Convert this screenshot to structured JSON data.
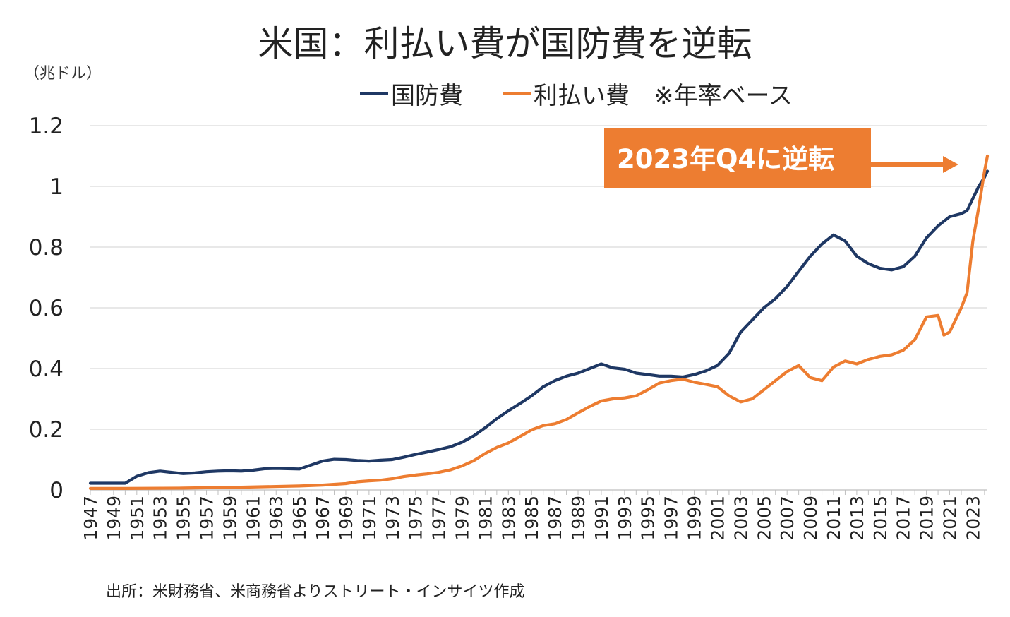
{
  "title": "米国：利払い費が国防費を逆転",
  "unit_label": "（兆ドル）",
  "legend_note": "※年率ベース",
  "source": "出所：米財務省、米商務省よりストリート・インサイツ作成",
  "annotation": {
    "text": "2023年Q4に逆転",
    "color": "#ed7d31"
  },
  "chart_data": {
    "type": "line",
    "x_range": [
      1947,
      2024.25
    ],
    "ylim": [
      0,
      1.2
    ],
    "yticks": [
      0,
      0.2,
      0.4,
      0.6,
      0.8,
      1,
      1.2
    ],
    "ytick_labels": [
      "0",
      "0.2",
      "0.4",
      "0.6",
      "0.8",
      "1",
      "1.2"
    ],
    "xtick_labels": [
      "1947",
      "1949",
      "1951",
      "1953",
      "1955",
      "1957",
      "1959",
      "1961",
      "1963",
      "1965",
      "1967",
      "1969",
      "1971",
      "1973",
      "1975",
      "1977",
      "1979",
      "1981",
      "1983",
      "1985",
      "1987",
      "1989",
      "1991",
      "1993",
      "1995",
      "1997",
      "1999",
      "2001",
      "2003",
      "2005",
      "2007",
      "2009",
      "2011",
      "2013",
      "2015",
      "2017",
      "2019",
      "2021",
      "2023"
    ],
    "grid": "horizontal",
    "series": [
      {
        "name": "国防費",
        "color": "#1f3864",
        "points": [
          [
            1947,
            0.022
          ],
          [
            1949,
            0.022
          ],
          [
            1950,
            0.022
          ],
          [
            1951,
            0.045
          ],
          [
            1952,
            0.057
          ],
          [
            1953,
            0.062
          ],
          [
            1954,
            0.058
          ],
          [
            1955,
            0.054
          ],
          [
            1956,
            0.056
          ],
          [
            1957,
            0.06
          ],
          [
            1958,
            0.062
          ],
          [
            1959,
            0.063
          ],
          [
            1960,
            0.062
          ],
          [
            1961,
            0.065
          ],
          [
            1962,
            0.07
          ],
          [
            1963,
            0.071
          ],
          [
            1964,
            0.07
          ],
          [
            1965,
            0.069
          ],
          [
            1966,
            0.082
          ],
          [
            1967,
            0.095
          ],
          [
            1968,
            0.101
          ],
          [
            1969,
            0.1
          ],
          [
            1970,
            0.097
          ],
          [
            1971,
            0.095
          ],
          [
            1972,
            0.098
          ],
          [
            1973,
            0.1
          ],
          [
            1974,
            0.108
          ],
          [
            1975,
            0.117
          ],
          [
            1976,
            0.125
          ],
          [
            1977,
            0.133
          ],
          [
            1978,
            0.142
          ],
          [
            1979,
            0.157
          ],
          [
            1980,
            0.178
          ],
          [
            1981,
            0.205
          ],
          [
            1982,
            0.235
          ],
          [
            1983,
            0.261
          ],
          [
            1984,
            0.285
          ],
          [
            1985,
            0.31
          ],
          [
            1986,
            0.34
          ],
          [
            1987,
            0.36
          ],
          [
            1988,
            0.375
          ],
          [
            1989,
            0.385
          ],
          [
            1990,
            0.4
          ],
          [
            1991,
            0.415
          ],
          [
            1992,
            0.402
          ],
          [
            1993,
            0.398
          ],
          [
            1994,
            0.385
          ],
          [
            1995,
            0.38
          ],
          [
            1996,
            0.375
          ],
          [
            1997,
            0.375
          ],
          [
            1998,
            0.372
          ],
          [
            1999,
            0.38
          ],
          [
            2000,
            0.392
          ],
          [
            2001,
            0.41
          ],
          [
            2002,
            0.45
          ],
          [
            2003,
            0.52
          ],
          [
            2004,
            0.56
          ],
          [
            2005,
            0.6
          ],
          [
            2006,
            0.63
          ],
          [
            2007,
            0.67
          ],
          [
            2008,
            0.72
          ],
          [
            2009,
            0.77
          ],
          [
            2010,
            0.81
          ],
          [
            2011,
            0.84
          ],
          [
            2012,
            0.82
          ],
          [
            2013,
            0.77
          ],
          [
            2014,
            0.745
          ],
          [
            2015,
            0.73
          ],
          [
            2016,
            0.725
          ],
          [
            2017,
            0.735
          ],
          [
            2018,
            0.77
          ],
          [
            2019,
            0.83
          ],
          [
            2020,
            0.87
          ],
          [
            2021,
            0.9
          ],
          [
            2022,
            0.91
          ],
          [
            2022.5,
            0.92
          ],
          [
            2023,
            0.96
          ],
          [
            2023.5,
            1.0
          ],
          [
            2024,
            1.03
          ],
          [
            2024.25,
            1.05
          ]
        ]
      },
      {
        "name": "利払い費",
        "color": "#ed7d31",
        "points": [
          [
            1947,
            0.005
          ],
          [
            1950,
            0.005
          ],
          [
            1955,
            0.006
          ],
          [
            1960,
            0.009
          ],
          [
            1965,
            0.013
          ],
          [
            1967,
            0.016
          ],
          [
            1969,
            0.021
          ],
          [
            1970,
            0.027
          ],
          [
            1971,
            0.03
          ],
          [
            1972,
            0.032
          ],
          [
            1973,
            0.037
          ],
          [
            1974,
            0.044
          ],
          [
            1975,
            0.049
          ],
          [
            1976,
            0.053
          ],
          [
            1977,
            0.058
          ],
          [
            1978,
            0.066
          ],
          [
            1979,
            0.079
          ],
          [
            1980,
            0.096
          ],
          [
            1981,
            0.12
          ],
          [
            1982,
            0.14
          ],
          [
            1983,
            0.155
          ],
          [
            1984,
            0.176
          ],
          [
            1985,
            0.198
          ],
          [
            1986,
            0.212
          ],
          [
            1987,
            0.218
          ],
          [
            1988,
            0.232
          ],
          [
            1989,
            0.254
          ],
          [
            1990,
            0.275
          ],
          [
            1991,
            0.293
          ],
          [
            1992,
            0.3
          ],
          [
            1993,
            0.303
          ],
          [
            1994,
            0.31
          ],
          [
            1995,
            0.33
          ],
          [
            1996,
            0.352
          ],
          [
            1997,
            0.36
          ],
          [
            1998,
            0.365
          ],
          [
            1999,
            0.355
          ],
          [
            2000,
            0.348
          ],
          [
            2001,
            0.34
          ],
          [
            2002,
            0.31
          ],
          [
            2003,
            0.29
          ],
          [
            2004,
            0.3
          ],
          [
            2005,
            0.33
          ],
          [
            2006,
            0.36
          ],
          [
            2007,
            0.39
          ],
          [
            2008,
            0.41
          ],
          [
            2009,
            0.37
          ],
          [
            2010,
            0.36
          ],
          [
            2011,
            0.405
          ],
          [
            2012,
            0.425
          ],
          [
            2013,
            0.415
          ],
          [
            2014,
            0.43
          ],
          [
            2015,
            0.44
          ],
          [
            2016,
            0.445
          ],
          [
            2017,
            0.46
          ],
          [
            2018,
            0.495
          ],
          [
            2019,
            0.57
          ],
          [
            2020,
            0.575
          ],
          [
            2020.5,
            0.51
          ],
          [
            2021,
            0.52
          ],
          [
            2022,
            0.6
          ],
          [
            2022.5,
            0.65
          ],
          [
            2023,
            0.82
          ],
          [
            2023.5,
            0.93
          ],
          [
            2024,
            1.05
          ],
          [
            2024.25,
            1.1
          ]
        ]
      }
    ]
  }
}
